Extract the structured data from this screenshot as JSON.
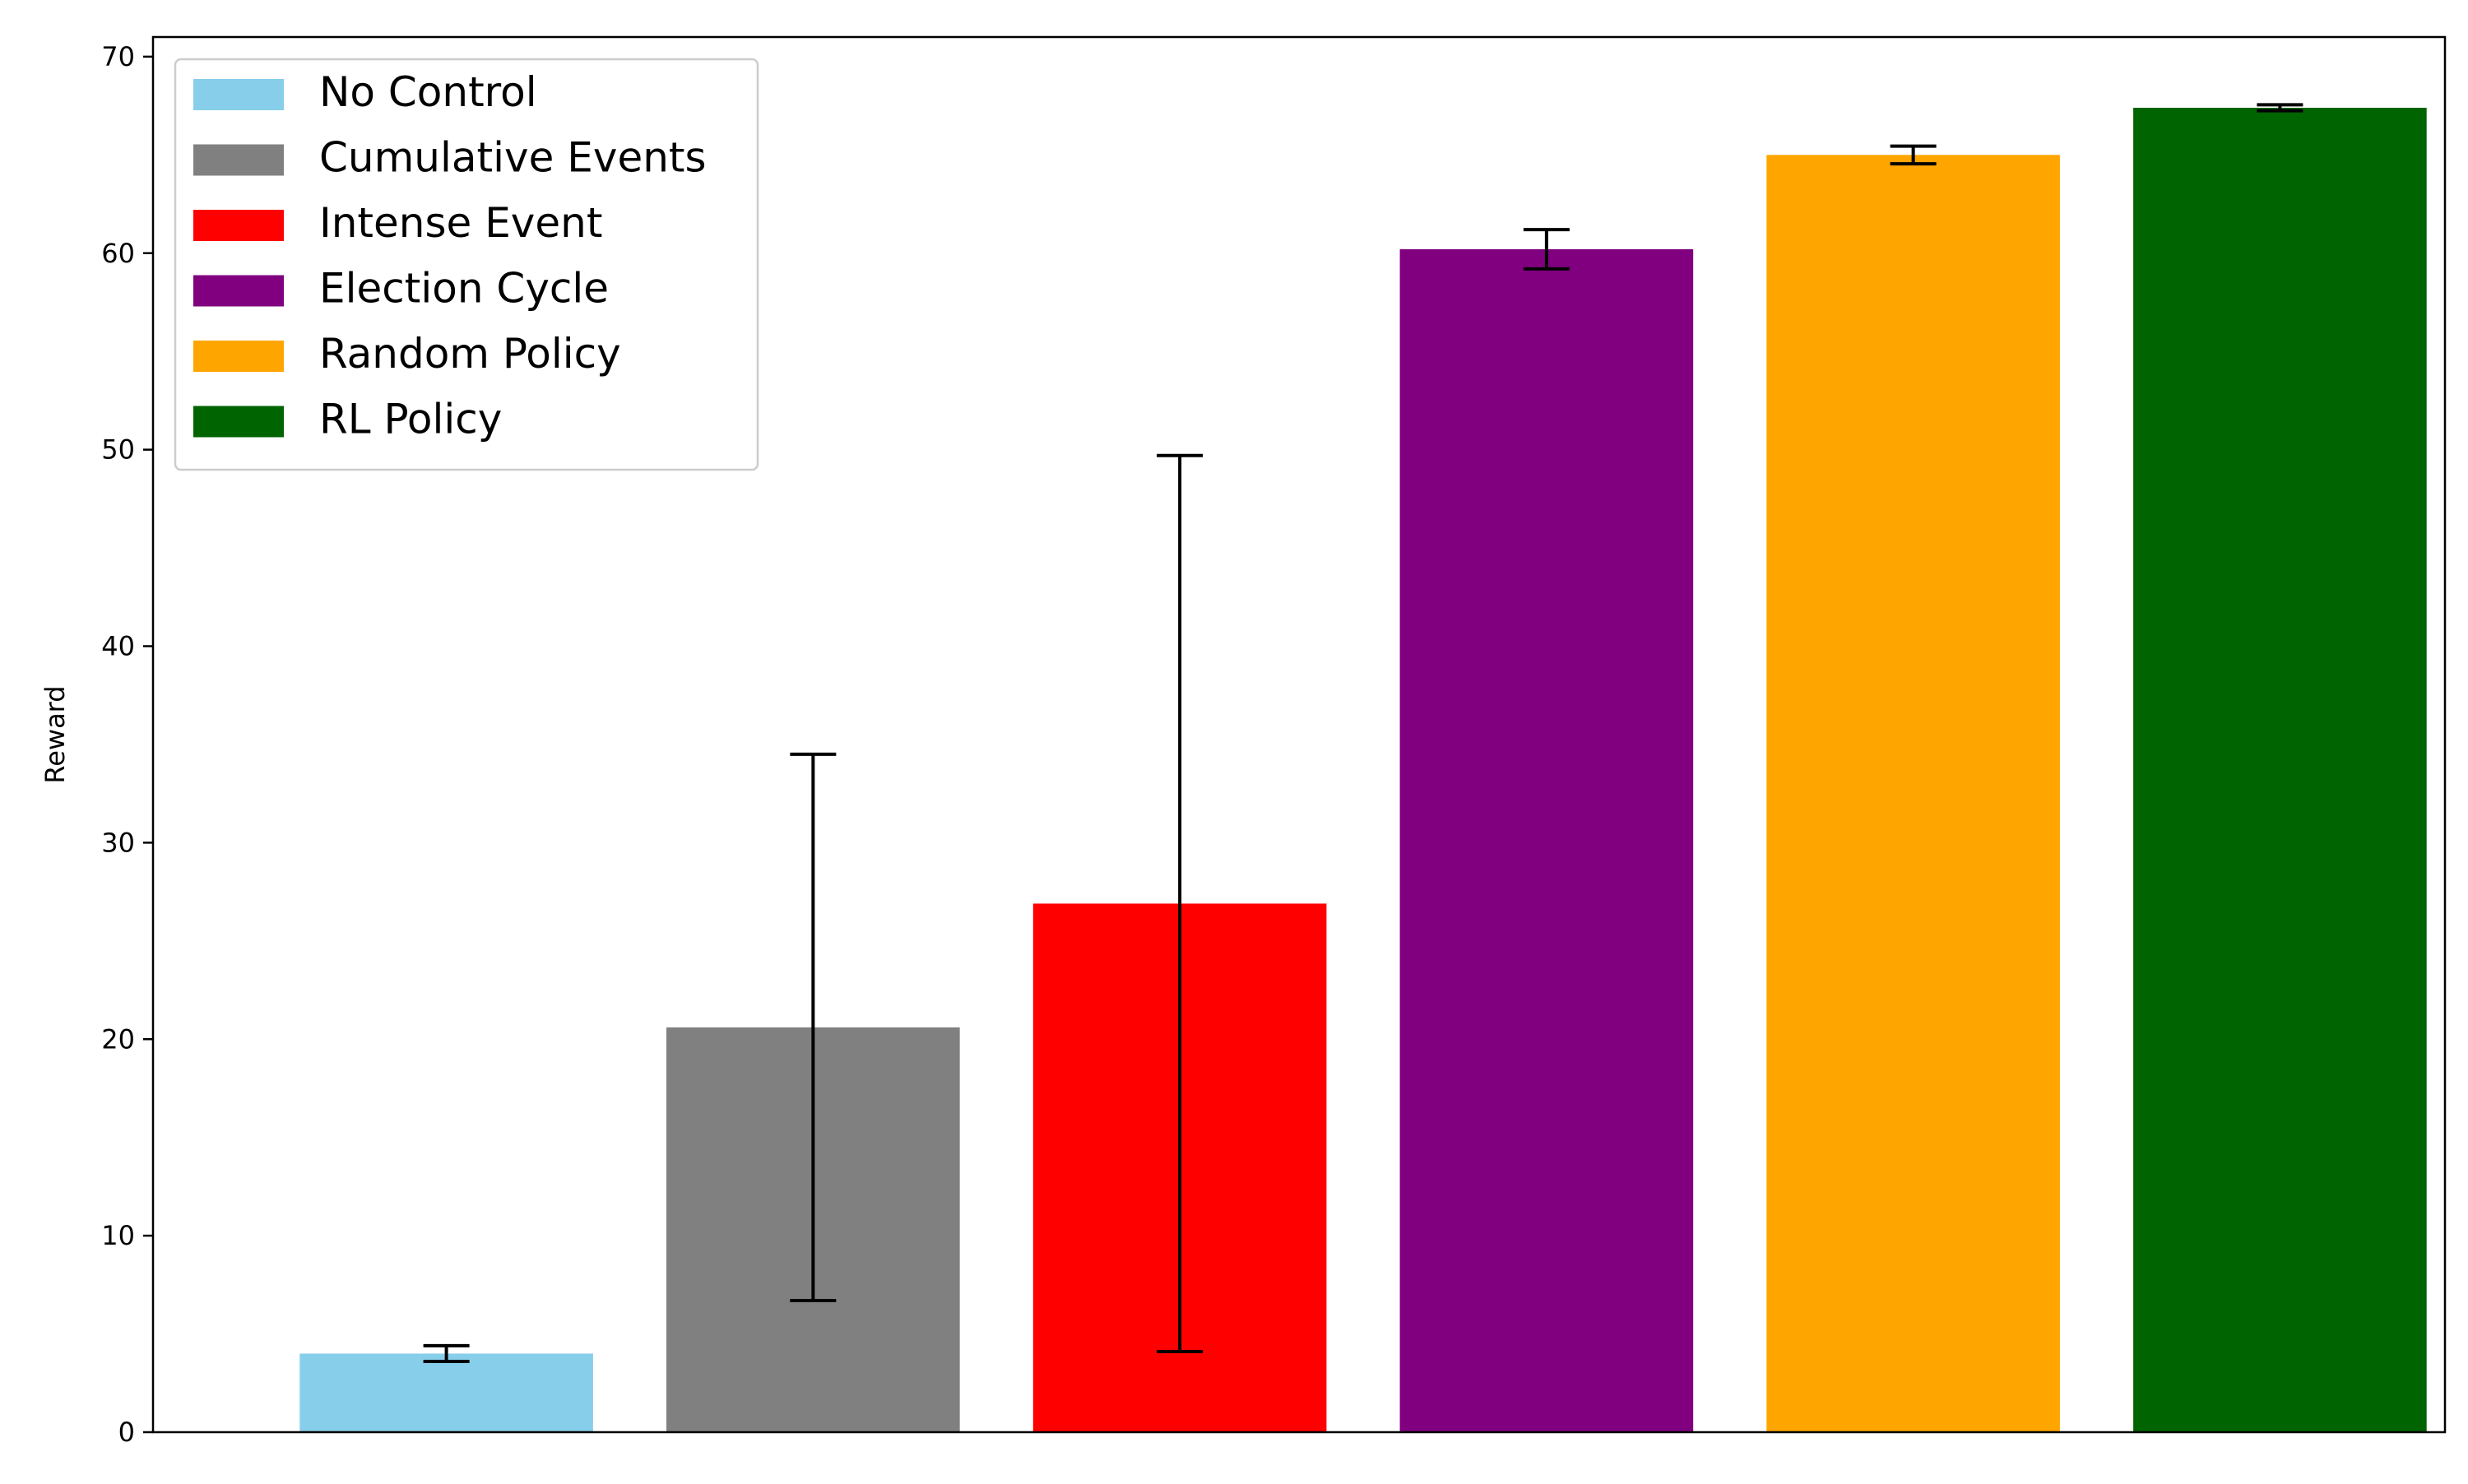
{
  "chart_data": {
    "type": "bar",
    "title": "",
    "xlabel": "",
    "ylabel": "Reward",
    "ylim": [
      0,
      71
    ],
    "yticks": [
      0,
      10,
      20,
      30,
      40,
      50,
      60,
      70
    ],
    "grid": false,
    "legend_position": "top-left",
    "categories": [
      "No Control",
      "Cumulative Events",
      "Intense Event",
      "Election Cycle",
      "Random Policy",
      "RL Policy"
    ],
    "values": [
      4.0,
      20.6,
      26.9,
      60.2,
      65.0,
      67.4
    ],
    "errors": [
      0.4,
      13.9,
      22.8,
      1.0,
      0.45,
      0.15
    ],
    "colors": [
      "#87ceeb",
      "#808080",
      "#ff0000",
      "#800080",
      "#ffa500",
      "#006400"
    ],
    "error_bar_color": "#000000"
  }
}
